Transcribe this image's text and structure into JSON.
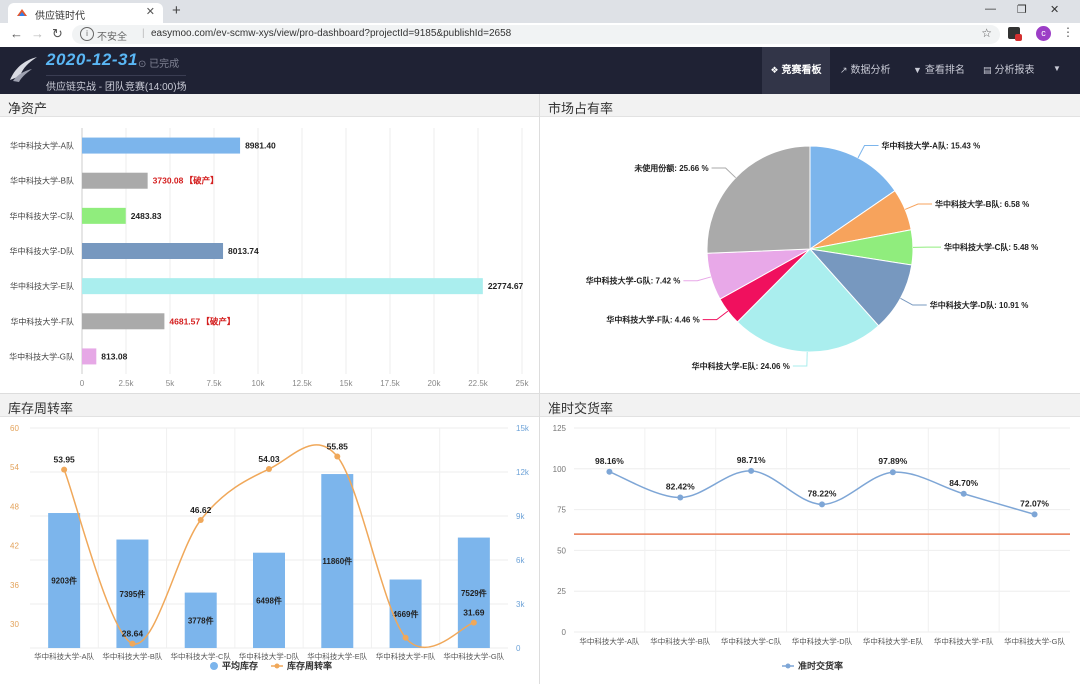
{
  "browser": {
    "tab_title": "供应链时代",
    "tab_close": "✕",
    "new_tab": "+",
    "omnibox_insecure": "不安全",
    "url": "easymoo.com/ev-scmw-xys/view/pro-dashboard?projectId=9185&publishId=2658",
    "avatar_letter": "c"
  },
  "header": {
    "date": "2020-12-31",
    "status": "已完成",
    "subtitle": "供应链实战 - 团队竞赛(14:00)场",
    "nav": [
      {
        "label": "竞赛看板",
        "icon": "❖",
        "active": true
      },
      {
        "label": "数据分析",
        "icon": "↗",
        "active": false
      },
      {
        "label": "查看排名",
        "icon": "▼",
        "active": false
      },
      {
        "label": "分析报表",
        "icon": "▤",
        "active": false
      }
    ]
  },
  "panels": {
    "net_assets": "净资产",
    "market_share": "市场占有率",
    "inventory": "库存周转率",
    "ontime": "准时交货率"
  },
  "chart_data": [
    {
      "type": "bar",
      "title": "净资产",
      "orientation": "horizontal",
      "categories": [
        "华中科技大学-A队",
        "华中科技大学-B队",
        "华中科技大学-C队",
        "华中科技大学-D队",
        "华中科技大学-E队",
        "华中科技大学-F队",
        "华中科技大学-G队"
      ],
      "values": [
        8981.4,
        3730.08,
        2483.83,
        8013.74,
        22774.67,
        4681.57,
        813.08
      ],
      "labels": [
        "8981.40",
        "3730.08",
        "2483.83",
        "8013.74",
        "22774.67",
        "4681.57",
        "813.08"
      ],
      "notes": [
        "",
        "【破产】",
        "",
        "",
        "",
        "【破产】",
        ""
      ],
      "colors": [
        "#7cb5ec",
        "#aaaaaa",
        "#90ed7d",
        "#7798bf",
        "#aaeeee",
        "#aaaaaa",
        "#e6a8e6"
      ],
      "xticks": [
        "0",
        "2.5k",
        "5k",
        "7.5k",
        "10k",
        "12.5k",
        "15k",
        "17.5k",
        "20k",
        "22.5k",
        "25k"
      ],
      "xlim": [
        0,
        25000
      ]
    },
    {
      "type": "pie",
      "title": "市场占有率",
      "slices": [
        {
          "label": "华中科技大学-A队: 15.43 %",
          "value": 15.43,
          "color": "#7cb5ec"
        },
        {
          "label": "华中科技大学-B队: 6.58 %",
          "value": 6.58,
          "color": "#f7a35c"
        },
        {
          "label": "华中科技大学-C队: 5.48 %",
          "value": 5.48,
          "color": "#90ed7d"
        },
        {
          "label": "华中科技大学-D队: 10.91 %",
          "value": 10.91,
          "color": "#7798bf"
        },
        {
          "label": "华中科技大学-E队: 24.06 %",
          "value": 24.06,
          "color": "#aaeeee"
        },
        {
          "label": "华中科技大学-F队: 4.46 %",
          "value": 4.46,
          "color": "#f0105e"
        },
        {
          "label": "华中科技大学-G队: 7.42 %",
          "value": 7.42,
          "color": "#e8a8e8"
        },
        {
          "label": "未使用份额: 25.66 %",
          "value": 25.66,
          "color": "#aaaaaa"
        }
      ]
    },
    {
      "type": "bar",
      "title": "库存周转率",
      "categories": [
        "华中科技大学-A队",
        "华中科技大学-B队",
        "华中科技大学-C队",
        "华中科技大学-D队",
        "华中科技大学-E队",
        "华中科技大学-F队",
        "华中科技大学-G队"
      ],
      "series": [
        {
          "name": "平均库存",
          "type": "bar",
          "axis": "right",
          "values": [
            9203,
            7395,
            3778,
            6498,
            11860,
            4669,
            7529
          ],
          "labels": [
            "9203件",
            "7395件",
            "3778件",
            "6498件",
            "11860件",
            "4669件",
            "7529件"
          ],
          "color": "#7cb5ec"
        },
        {
          "name": "库存周转率",
          "type": "line",
          "axis": "left",
          "values": [
            53.95,
            28.64,
            46.62,
            54.03,
            55.85,
            29.5,
            31.69
          ],
          "labels": [
            "53.95",
            "28.64",
            "46.62",
            "54.03",
            "55.85",
            "",
            "31.69"
          ],
          "color": "#f0a85a"
        }
      ],
      "yleft_ticks": [
        "60",
        "54",
        "48",
        "42",
        "36",
        "30"
      ],
      "yleft_lim": [
        28,
        60
      ],
      "yright_ticks": [
        "15k",
        "12k",
        "9k",
        "6k",
        "3k",
        "0"
      ],
      "yright_lim": [
        0,
        15000
      ]
    },
    {
      "type": "line",
      "title": "准时交货率",
      "categories": [
        "华中科技大学-A队",
        "华中科技大学-B队",
        "华中科技大学-C队",
        "华中科技大学-D队",
        "华中科技大学-E队",
        "华中科技大学-F队",
        "华中科技大学-G队"
      ],
      "series": [
        {
          "name": "准时交货率",
          "values": [
            98.16,
            82.42,
            98.71,
            78.22,
            97.89,
            84.7,
            72.07
          ],
          "labels": [
            "98.16%",
            "82.42%",
            "98.71%",
            "78.22%",
            "97.89%",
            "84.70%",
            "72.07%"
          ],
          "color": "#7ea6d6"
        }
      ],
      "yticks": [
        "125",
        "100",
        "75",
        "50",
        "25",
        "0"
      ],
      "ylim": [
        0,
        125
      ],
      "threshold": {
        "value": 60,
        "color": "#e8774f"
      }
    }
  ]
}
